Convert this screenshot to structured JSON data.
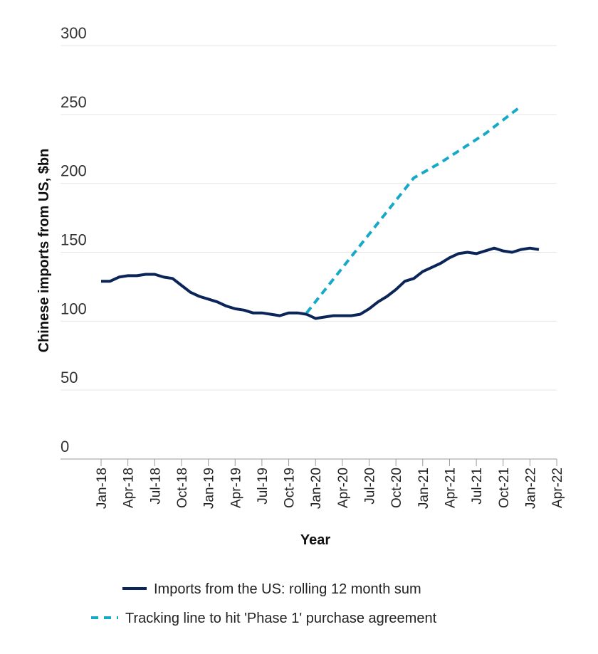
{
  "chart_data": {
    "type": "line",
    "title": "",
    "xlabel": "Year",
    "ylabel": "Chinese imports from US, $bn",
    "ylim": [
      0,
      300
    ],
    "yticks": [
      0,
      50,
      100,
      150,
      200,
      250,
      300
    ],
    "grid": true,
    "categories": [
      "Jan-18",
      "Apr-18",
      "Jul-18",
      "Oct-18",
      "Jan-19",
      "Apr-19",
      "Jul-19",
      "Oct-19",
      "Jan-20",
      "Apr-20",
      "Jul-20",
      "Oct-20",
      "Jan-21",
      "Apr-21",
      "Jul-21",
      "Oct-21",
      "Jan-22",
      "Apr-22"
    ],
    "series": [
      {
        "name": "Imports from the US: rolling 12 month sum",
        "style": "solid",
        "color": "#0b2559",
        "points": [
          [
            0,
            129
          ],
          [
            1,
            129
          ],
          [
            2,
            132
          ],
          [
            3,
            133
          ],
          [
            4,
            133
          ],
          [
            5,
            134
          ],
          [
            6,
            134
          ],
          [
            7,
            132
          ],
          [
            8,
            131
          ],
          [
            9,
            126
          ],
          [
            10,
            121
          ],
          [
            11,
            118
          ],
          [
            12,
            116
          ],
          [
            13,
            114
          ],
          [
            14,
            111
          ],
          [
            15,
            109
          ],
          [
            16,
            108
          ],
          [
            17,
            106
          ],
          [
            18,
            106
          ],
          [
            19,
            105
          ],
          [
            20,
            104
          ],
          [
            21,
            106
          ],
          [
            22,
            106
          ],
          [
            23,
            105
          ],
          [
            24,
            102
          ],
          [
            25,
            103
          ],
          [
            26,
            104
          ],
          [
            27,
            104
          ],
          [
            28,
            104
          ],
          [
            29,
            105
          ],
          [
            30,
            109
          ],
          [
            31,
            114
          ],
          [
            32,
            118
          ],
          [
            33,
            123
          ],
          [
            34,
            129
          ],
          [
            35,
            131
          ],
          [
            36,
            136
          ],
          [
            37,
            139
          ],
          [
            38,
            142
          ],
          [
            39,
            146
          ],
          [
            40,
            149
          ],
          [
            41,
            150
          ],
          [
            42,
            149
          ],
          [
            43,
            151
          ],
          [
            44,
            153
          ],
          [
            45,
            151
          ],
          [
            46,
            150
          ],
          [
            47,
            152
          ],
          [
            48,
            153
          ],
          [
            49,
            152
          ]
        ]
      },
      {
        "name": "Tracking line to hit 'Phase 1' purchase agreement",
        "style": "dashed",
        "color": "#17a9c7",
        "points": [
          [
            23,
            106
          ],
          [
            35,
            204
          ],
          [
            38,
            215
          ],
          [
            43,
            236
          ],
          [
            47,
            256
          ]
        ]
      }
    ],
    "legend_position": "bottom"
  }
}
